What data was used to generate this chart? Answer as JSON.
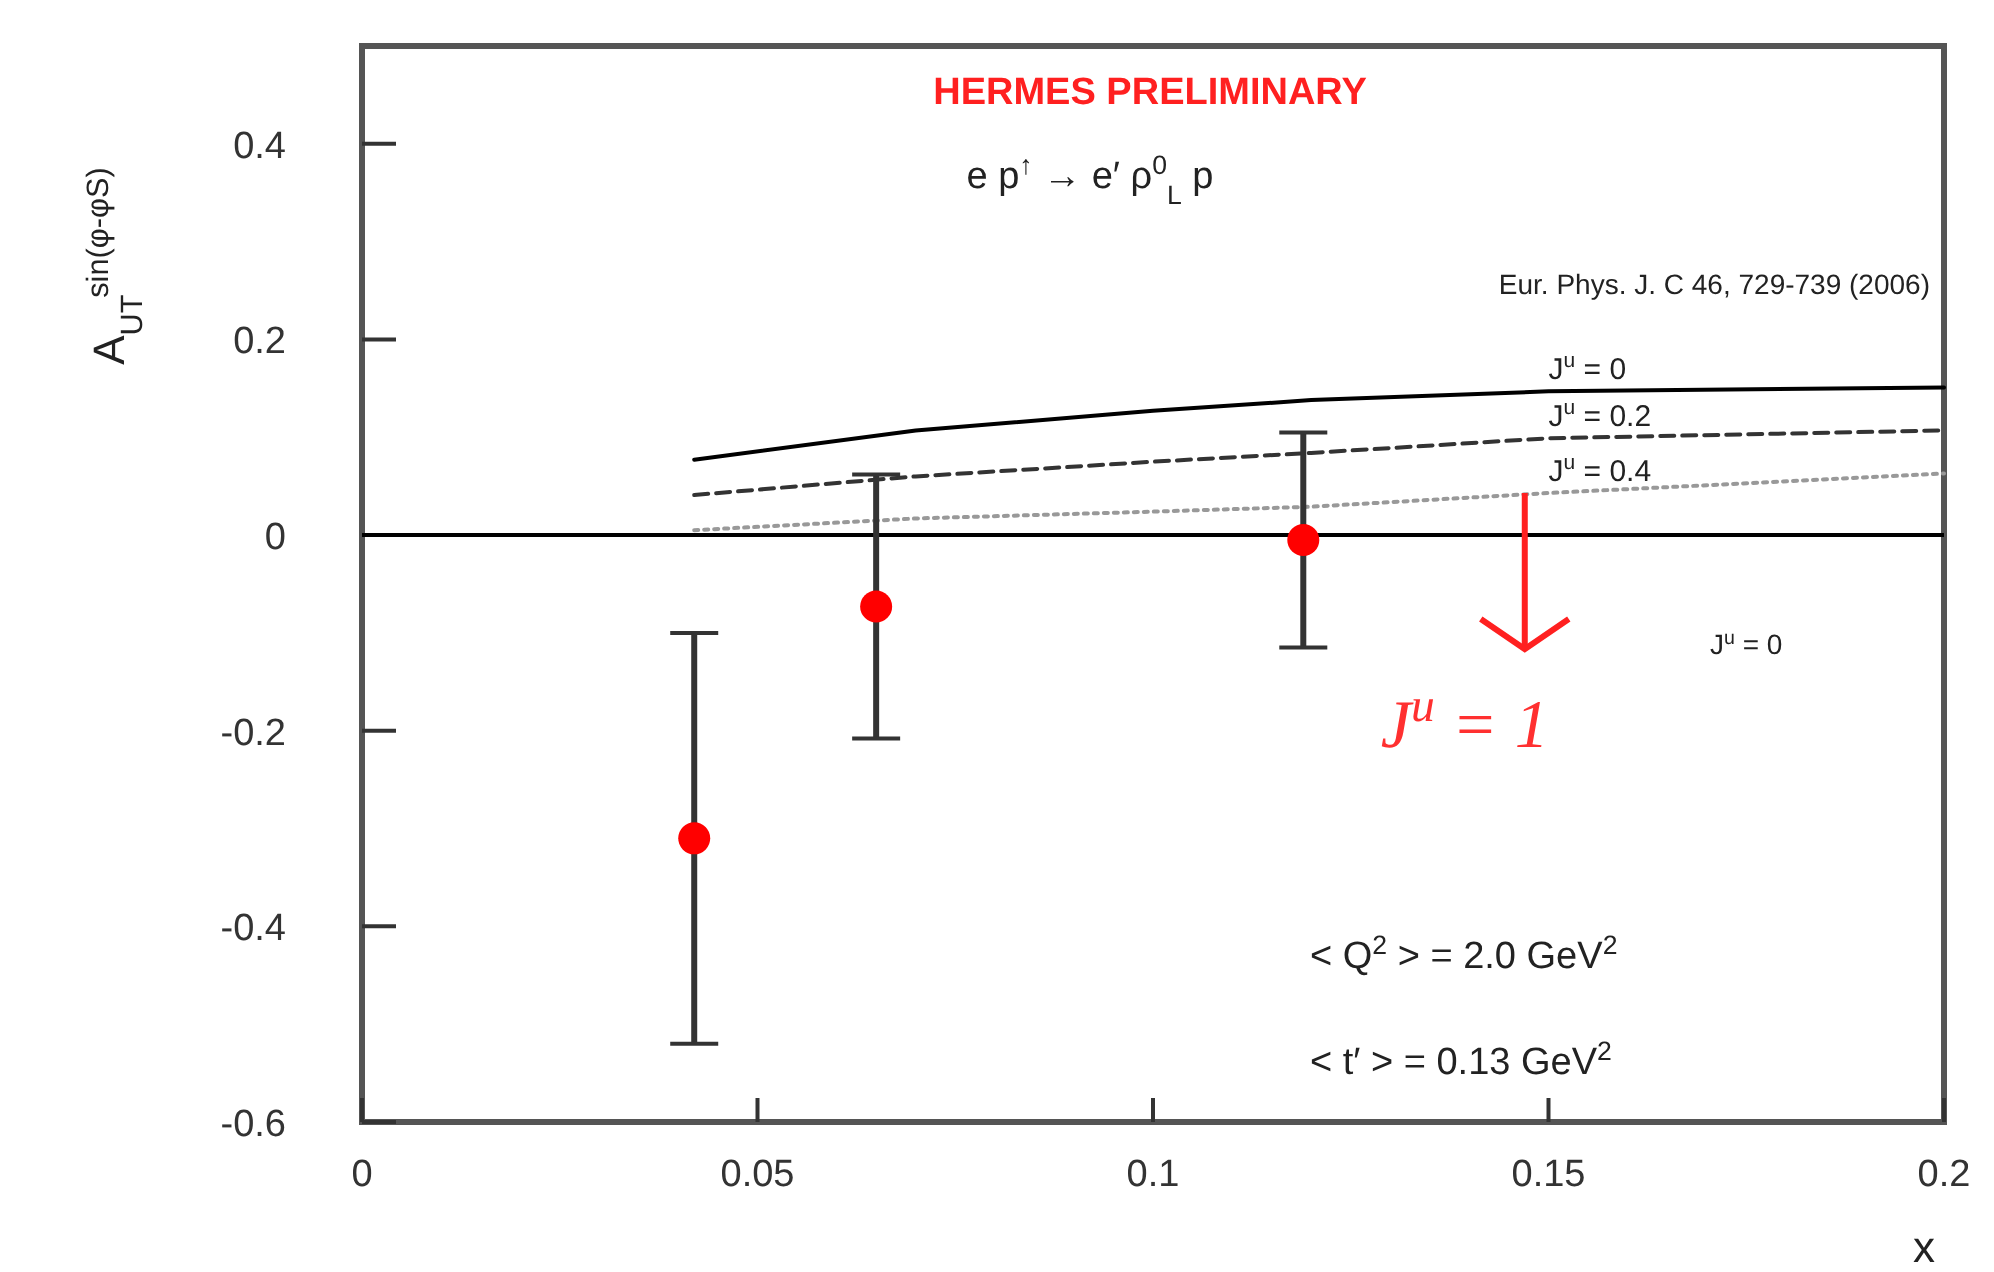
{
  "chart_data": {
    "type": "scatter",
    "xlabel": "x",
    "ylabel": "A$_{UT}$$^{sin(φ-φS)}$",
    "xlim": [
      0,
      0.2
    ],
    "ylim": [
      -0.6,
      0.5
    ],
    "xticks": [
      0,
      0.05,
      0.1,
      0.15,
      0.2
    ],
    "yticks": [
      -0.6,
      -0.4,
      -0.2,
      0,
      0.2,
      0.4
    ],
    "grid": false,
    "ref_lines": [
      {
        "axis": "y",
        "value": 0,
        "color": "#000000"
      }
    ],
    "series": [
      {
        "type": "line",
        "name": "J$^{u}$ = 0",
        "color": "#000000",
        "line_style": "solid",
        "x": [
          0.042,
          0.07,
          0.1,
          0.12,
          0.15,
          0.2
        ],
        "values": [
          0.077,
          0.107,
          0.127,
          0.138,
          0.147,
          0.151
        ]
      },
      {
        "type": "line",
        "name": "J$^{u}$ = 0.2",
        "color": "#333333",
        "line_style": "dashed",
        "x": [
          0.042,
          0.07,
          0.1,
          0.12,
          0.15,
          0.2
        ],
        "values": [
          0.041,
          0.06,
          0.075,
          0.084,
          0.099,
          0.107
        ]
      },
      {
        "type": "line",
        "name": "J$^{u}$ = 0.4",
        "color": "#999999",
        "line_style": "dotted",
        "x": [
          0.042,
          0.07,
          0.1,
          0.12,
          0.15,
          0.2
        ],
        "values": [
          0.005,
          0.017,
          0.024,
          0.029,
          0.043,
          0.063
        ]
      },
      {
        "type": "scatter",
        "marker": "circle",
        "color": "#ff0000",
        "x": [
          0.042,
          0.065,
          0.119
        ],
        "values": [
          -0.31,
          -0.073,
          -0.005
        ],
        "errors": [
          0.21,
          0.135,
          0.11
        ]
      }
    ],
    "annotations": [
      "HERMES PRELIMINARY",
      "e p$^{↑}$ → e′ ρ$^{0}$$_{L}$ p",
      "Eur. Phys. J. C 46, 729-739 (2006)",
      "J$^{u}$ = 0",
      {
        "text": "J$^{u}$ = 1",
        "x": 0.147,
        "y": 0.043
      },
      "< Q$^{2}$ > = 2.0 GeV$^{2}$",
      "< t′ > = 0.13 GeV$^{2}$"
    ]
  }
}
